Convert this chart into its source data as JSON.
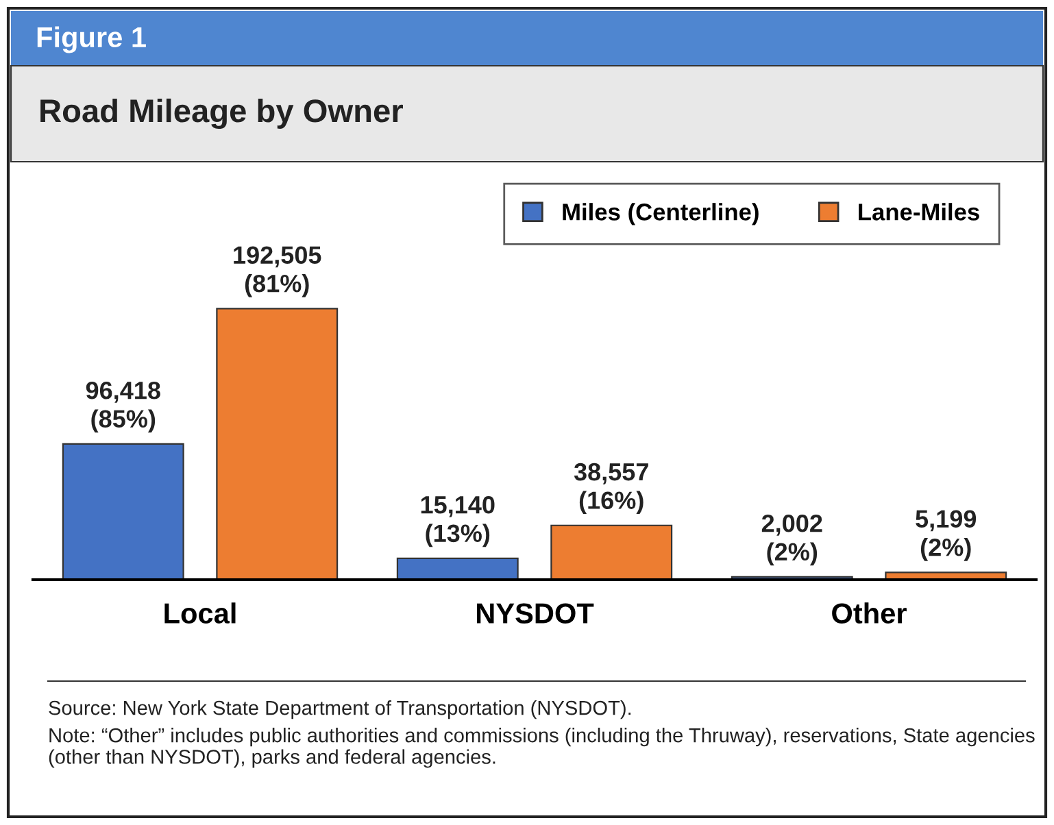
{
  "chart_data": {
    "type": "bar",
    "subtitle": "Figure 1",
    "title": "Road Mileage by Owner",
    "categories": [
      "Local",
      "NYSDOT",
      "Other"
    ],
    "series": [
      {
        "name": "Miles (Centerline)",
        "color": "#4472c4",
        "values": [
          96418,
          15140,
          2002
        ],
        "value_labels": [
          "96,418\n(85%)",
          "15,140\n(13%)",
          "2,002\n(2%)"
        ]
      },
      {
        "name": "Lane-Miles",
        "color": "#ed7d31",
        "values": [
          192505,
          38557,
          5199
        ],
        "value_labels": [
          "192,505\n(81%)",
          "38,557\n(16%)",
          "5,199\n(2%)"
        ]
      }
    ],
    "legend": "top right",
    "grid": false,
    "annotations": [
      "Source: New York State Department of Transportation (NYSDOT).",
      "Note: “Other” includes public authorities and commissions (including the Thruway), reservations, State agencies (other than NYSDOT), parks and federal agencies."
    ]
  }
}
